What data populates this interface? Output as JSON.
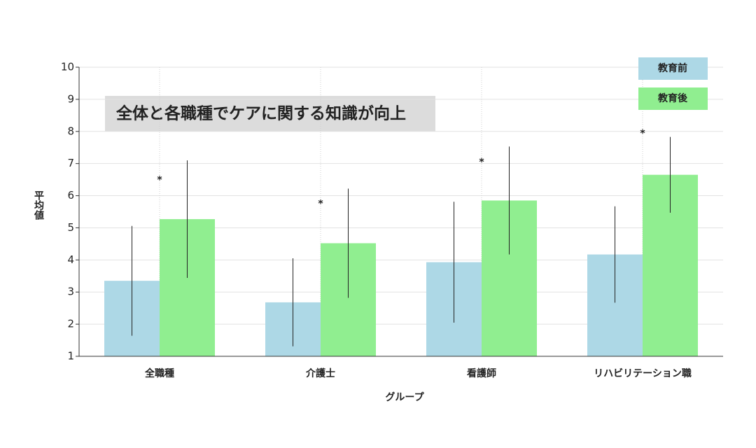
{
  "chart_data": {
    "type": "bar",
    "title": "全体と各職種でケアに関する知識が向上",
    "x_label": "グループ",
    "y_label": "平均値",
    "categories": [
      "全職種",
      "介護士",
      "看護師",
      "リハビリテーション職"
    ],
    "series": [
      {
        "name": "教育前",
        "color": "#add8e6",
        "values": [
          3.35,
          2.68,
          3.93,
          4.17
        ],
        "errors": [
          1.71,
          1.37,
          1.88,
          1.5
        ]
      },
      {
        "name": "教育後",
        "color": "#90ee90",
        "values": [
          5.27,
          4.52,
          5.85,
          6.65
        ],
        "errors": [
          1.83,
          1.7,
          1.68,
          1.18
        ]
      }
    ],
    "annotations": [
      {
        "text": "*",
        "y": 6.55
      },
      {
        "text": "*",
        "y": 5.8
      },
      {
        "text": "*",
        "y": 7.1
      },
      {
        "text": "*",
        "y": 8.0
      }
    ],
    "ylim": [
      1,
      10
    ],
    "yticks": [
      1,
      2,
      3,
      4,
      5,
      6,
      7,
      8,
      9,
      10
    ],
    "grid": true
  }
}
